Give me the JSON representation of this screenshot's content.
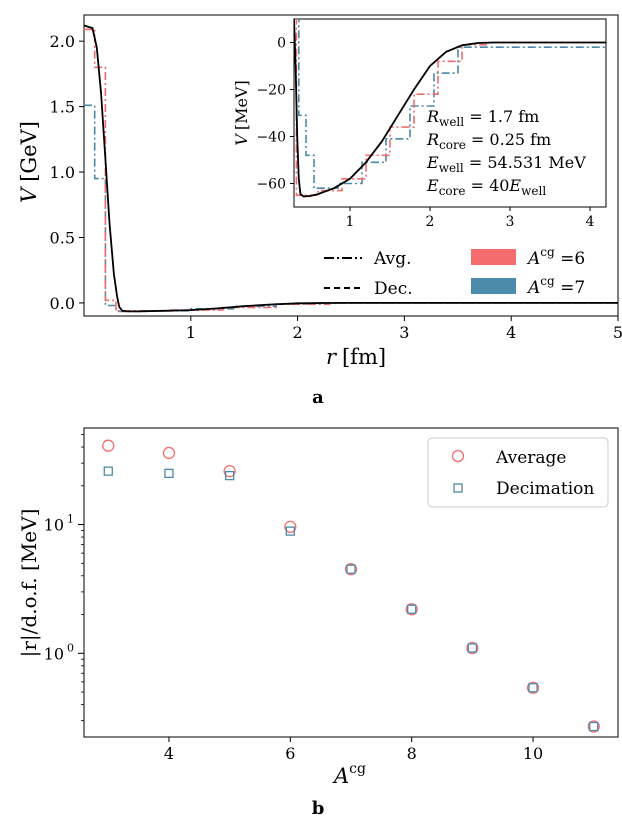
{
  "figure_labels": {
    "a": "a",
    "b": "b"
  },
  "colors": {
    "average": "#f56c6e",
    "decimation": "#4b8aa8",
    "exact": "#000000",
    "inset_frame": "#000000"
  },
  "chart_data": [
    {
      "id": "a",
      "type": "line",
      "xlabel_var": "r",
      "xlabel_unit": "[fm]",
      "ylabel_var": "V",
      "ylabel_unit": "[GeV]",
      "xlim": [
        0,
        5
      ],
      "ylim": [
        -0.1,
        2.2
      ],
      "xticks": [
        "1",
        "2",
        "3",
        "4",
        "5"
      ],
      "yticks": [
        "0.0",
        "0.5",
        "1.0",
        "1.5",
        "2.0"
      ],
      "xtick_values": [
        1,
        2,
        3,
        4,
        5
      ],
      "ytick_values": [
        0.0,
        0.5,
        1.0,
        1.5,
        2.0
      ],
      "legend": {
        "avg": "Avg.",
        "dec": "Dec.",
        "a6_base": "A",
        "a6_sup": "cg",
        "a6_rest": " =6",
        "a7_base": "A",
        "a7_sup": "cg",
        "a7_rest": " =7"
      },
      "exact_curve": {
        "x": [
          0.0,
          0.08,
          0.12,
          0.16,
          0.2,
          0.24,
          0.28,
          0.31,
          0.33,
          0.36,
          0.4,
          0.5,
          0.75,
          1.0,
          1.25,
          1.5,
          1.75,
          2.0,
          2.25,
          2.5,
          3.0,
          4.0,
          5.0
        ],
        "y": [
          2.12,
          2.1,
          1.95,
          1.6,
          1.1,
          0.6,
          0.22,
          0.05,
          -0.03,
          -0.06,
          -0.065,
          -0.065,
          -0.06,
          -0.055,
          -0.042,
          -0.025,
          -0.012,
          -0.003,
          -0.0005,
          0.0,
          0.0,
          0.0,
          0.0
        ]
      },
      "average_A6": {
        "x": [
          0.0,
          0.1,
          0.1,
          0.2,
          0.2,
          0.3,
          0.3,
          0.8,
          0.8,
          1.3,
          1.3,
          1.8,
          1.8,
          2.3,
          2.3,
          5.0
        ],
        "y": [
          2.09,
          2.09,
          1.8,
          1.8,
          0.02,
          0.02,
          -0.06,
          -0.06,
          -0.055,
          -0.055,
          -0.035,
          -0.035,
          -0.01,
          -0.01,
          0.0,
          0.0
        ]
      },
      "decimation_A7": {
        "x": [
          0.0,
          0.1,
          0.1,
          0.2,
          0.2,
          0.3,
          0.3,
          0.6,
          0.6,
          1.0,
          1.0,
          1.4,
          1.4,
          1.8,
          1.8,
          2.2,
          2.2,
          5.0
        ],
        "y": [
          1.51,
          1.51,
          0.95,
          0.95,
          -0.02,
          -0.02,
          -0.065,
          -0.065,
          -0.06,
          -0.06,
          -0.045,
          -0.045,
          -0.025,
          -0.025,
          -0.008,
          -0.008,
          0.0,
          0.0
        ]
      },
      "inset": {
        "ylabel_var": "V",
        "ylabel_unit": "[MeV]",
        "xlim": [
          0.3,
          4.2
        ],
        "ylim": [
          -70,
          10
        ],
        "xticks": [
          "1",
          "2",
          "3",
          "4"
        ],
        "yticks": [
          "0",
          "−20",
          "−40",
          "−60"
        ],
        "xtick_values": [
          1,
          2,
          3,
          4
        ],
        "ytick_values": [
          0,
          -20,
          -40,
          -60
        ],
        "annotations": [
          {
            "var": "R",
            "sub": "well",
            "rest": " = 1.7 fm"
          },
          {
            "var": "R",
            "sub": "core",
            "rest": " = 0.25 fm"
          },
          {
            "var": "E",
            "sub": "well",
            "rest": " = 54.531 MeV"
          },
          {
            "var": "E",
            "sub": "core",
            "rest": " = 40",
            "var2": "E",
            "sub2": "well"
          }
        ],
        "exact_curve": {
          "x": [
            0.3,
            0.32,
            0.34,
            0.36,
            0.38,
            0.42,
            0.5,
            0.6,
            0.8,
            1.0,
            1.2,
            1.4,
            1.6,
            1.8,
            2.0,
            2.2,
            2.4,
            2.6,
            2.8,
            3.0,
            3.5,
            4.2
          ],
          "y": [
            10,
            -10,
            -40,
            -58,
            -64.5,
            -65.5,
            -65.3,
            -64.5,
            -62,
            -58,
            -51,
            -42,
            -31,
            -20,
            -10,
            -4,
            -1.2,
            -0.2,
            0,
            0,
            0,
            0
          ]
        },
        "average_A6": {
          "x": [
            0.3,
            0.33,
            0.33,
            0.6,
            0.6,
            0.9,
            0.9,
            1.2,
            1.2,
            1.5,
            1.5,
            1.8,
            1.8,
            2.1,
            2.1,
            2.4,
            2.4,
            2.7,
            2.7,
            4.2
          ],
          "y": [
            10,
            10,
            -65,
            -65,
            -63,
            -63,
            -58,
            -58,
            -48,
            -48,
            -36,
            -36,
            -22,
            -22,
            -8,
            -8,
            -1,
            -1,
            0,
            0
          ]
        },
        "decimation_A7": {
          "x": [
            0.3,
            0.36,
            0.36,
            0.45,
            0.45,
            0.55,
            0.55,
            0.85,
            0.85,
            1.15,
            1.15,
            1.45,
            1.45,
            1.75,
            1.75,
            2.05,
            2.05,
            2.35,
            2.35,
            4.2
          ],
          "y": [
            10,
            10,
            -31,
            -31,
            -48,
            -48,
            -62,
            -62,
            -60,
            -60,
            -51,
            -51,
            -41,
            -41,
            -27,
            -27,
            -13,
            -13,
            -2,
            -2
          ]
        }
      }
    },
    {
      "id": "b",
      "type": "scatter",
      "xlabel_var": "A",
      "xlabel_sup": "cg",
      "ylabel": "|r|/d.o.f. [MeV]",
      "yscale": "log",
      "xlim": [
        2.6,
        11.4
      ],
      "ylim_log10": [
        -0.65,
        1.75
      ],
      "xticks": [
        "4",
        "6",
        "8",
        "10"
      ],
      "xtick_values": [
        4,
        6,
        8,
        10
      ],
      "yticks_base": [
        "10",
        "10",
        "10"
      ],
      "yticks_exp": [
        "0",
        "1",
        ""
      ],
      "ytick_values_log10": [
        0,
        1
      ],
      "legend": {
        "average": "Average",
        "decimation": "Decimation"
      },
      "series": [
        {
          "name": "Average",
          "marker": "circle",
          "x": [
            3,
            4,
            5,
            6,
            7,
            8,
            9,
            10,
            11
          ],
          "y": [
            41,
            36,
            26,
            9.6,
            4.5,
            2.2,
            1.1,
            0.54,
            0.27
          ]
        },
        {
          "name": "Decimation",
          "marker": "square",
          "x": [
            3,
            4,
            5,
            6,
            7,
            8,
            9,
            10,
            11
          ],
          "y": [
            26,
            25,
            24,
            8.9,
            4.5,
            2.2,
            1.1,
            0.54,
            0.27
          ]
        }
      ]
    }
  ]
}
